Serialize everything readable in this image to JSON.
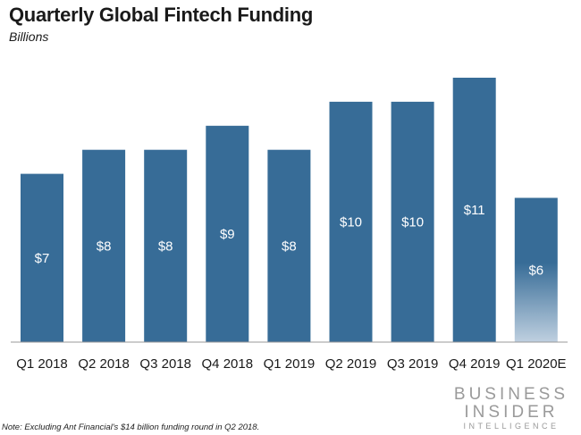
{
  "chart_data": {
    "type": "bar",
    "title": "Quarterly Global Fintech Funding",
    "subtitle": "Billions",
    "categories": [
      "Q1 2018",
      "Q2 2018",
      "Q3 2018",
      "Q4 2018",
      "Q1 2019",
      "Q2 2019",
      "Q3 2019",
      "Q4 2019",
      "Q1 2020E"
    ],
    "values": [
      7,
      8,
      8,
      9,
      8,
      10,
      10,
      11,
      6
    ],
    "data_labels": [
      "$7",
      "$8",
      "$8",
      "$9",
      "$8",
      "$10",
      "$10",
      "$11",
      "$6"
    ],
    "estimated": [
      false,
      false,
      false,
      false,
      false,
      false,
      false,
      false,
      true
    ],
    "ylim": [
      0,
      11
    ],
    "xlabel": "",
    "ylabel": "",
    "grid": false,
    "bar_color": "#376c97"
  },
  "note": "Note: Excluding Ant Financial's $14 billion funding round in Q2 2018.",
  "brand": {
    "line1": "BUSINESS",
    "line2": "INSIDER",
    "line3": "INTELLIGENCE"
  }
}
